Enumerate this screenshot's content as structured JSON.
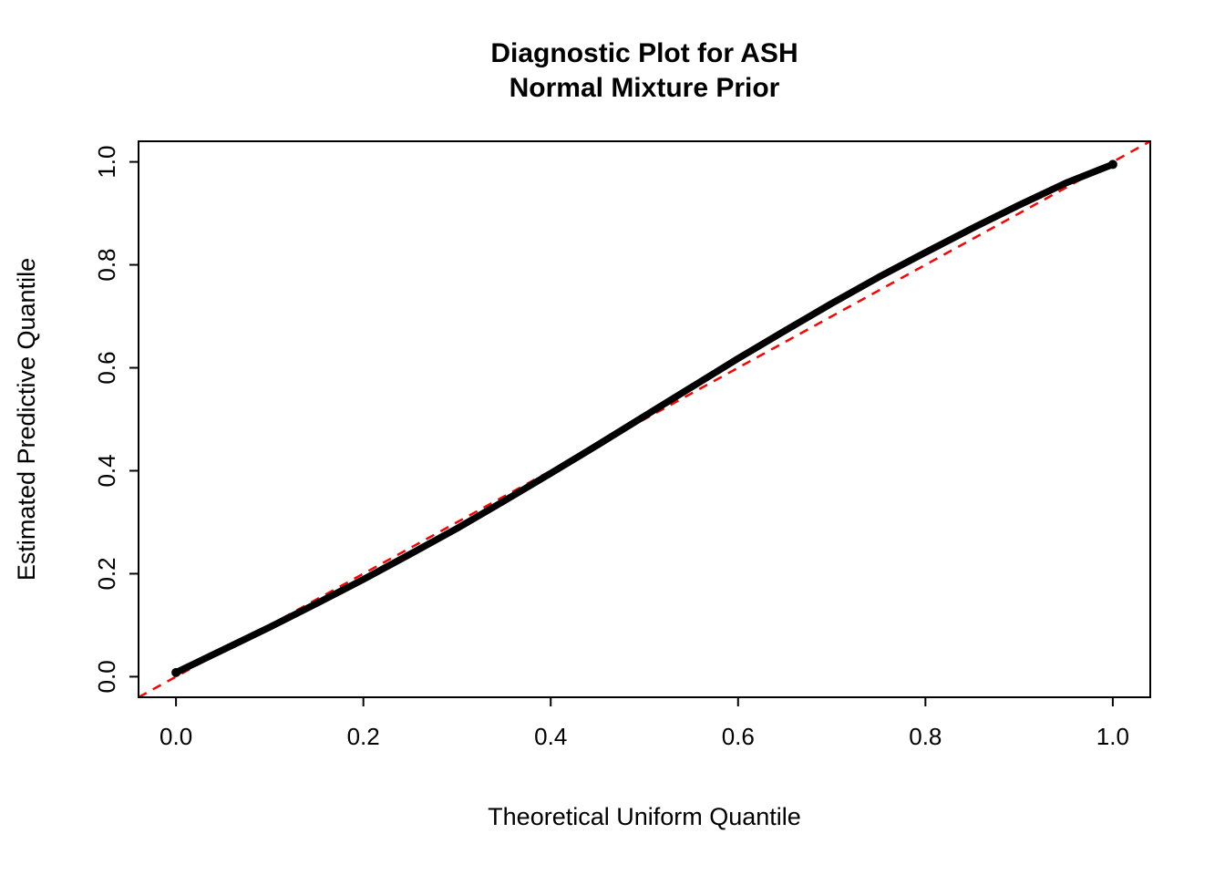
{
  "chart_data": {
    "type": "scatter",
    "title_lines": [
      "Diagnostic Plot for ASH",
      "Normal Mixture Prior"
    ],
    "xlabel": "Theoretical Uniform Quantile",
    "ylabel": "Estimated Predictive Quantile",
    "xlim": [
      -0.04,
      1.04
    ],
    "ylim": [
      -0.04,
      1.04
    ],
    "xticks": [
      0.0,
      0.2,
      0.4,
      0.6,
      0.8,
      1.0
    ],
    "yticks": [
      0.0,
      0.2,
      0.4,
      0.6,
      0.8,
      1.0
    ],
    "xtick_labels": [
      "0.0",
      "0.2",
      "0.4",
      "0.6",
      "0.8",
      "1.0"
    ],
    "ytick_labels": [
      "0.0",
      "0.2",
      "0.4",
      "0.6",
      "0.8",
      "1.0"
    ],
    "grid": false,
    "box": true,
    "legend": null,
    "reference_line": {
      "type": "abline",
      "intercept": 0,
      "slope": 1,
      "color": "#ff0000",
      "style": "dashed"
    },
    "series": [
      {
        "name": "estimated-predictive-quantiles",
        "color": "#000000",
        "marker": "point",
        "x": [
          0.0,
          0.05,
          0.1,
          0.15,
          0.2,
          0.25,
          0.3,
          0.35,
          0.4,
          0.45,
          0.5,
          0.55,
          0.6,
          0.65,
          0.7,
          0.75,
          0.8,
          0.85,
          0.9,
          0.95,
          1.0
        ],
        "y": [
          0.008,
          0.052,
          0.096,
          0.142,
          0.189,
          0.238,
          0.288,
          0.341,
          0.395,
          0.45,
          0.506,
          0.562,
          0.618,
          0.672,
          0.725,
          0.776,
          0.824,
          0.871,
          0.916,
          0.959,
          0.995
        ]
      }
    ],
    "colors": {
      "points": "#000000",
      "reference": "#ff0000",
      "background": "#ffffff",
      "axis": "#000000"
    }
  }
}
